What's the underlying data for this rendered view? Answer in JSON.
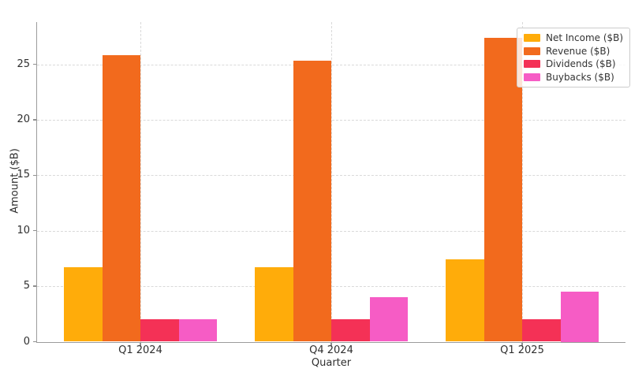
{
  "chart_data": {
    "type": "bar",
    "title": "",
    "xlabel": "Quarter",
    "ylabel": "Amount ($B)",
    "categories": [
      "Q1 2024",
      "Q4 2024",
      "Q1 2025"
    ],
    "series": [
      {
        "name": "Net Income ($B)",
        "color": "#FFAC0A",
        "values": [
          6.7,
          6.7,
          7.4
        ]
      },
      {
        "name": "Revenue ($B)",
        "color": "#F26A1D",
        "values": [
          25.8,
          25.3,
          27.4
        ]
      },
      {
        "name": "Dividends ($B)",
        "color": "#F43156",
        "values": [
          2.0,
          2.0,
          2.0
        ]
      },
      {
        "name": "Buybacks ($B)",
        "color": "#F65CC5",
        "values": [
          2.0,
          4.0,
          4.5
        ]
      }
    ],
    "yticks": [
      0,
      5,
      10,
      15,
      20,
      25
    ],
    "ylim": [
      0,
      28.8
    ],
    "grid": true,
    "grid_style": "dashed",
    "legend_position": "upper right",
    "colors": {
      "grid": "#d9d9d9",
      "spine": "#9c9c9c",
      "text": "#2f2f2f",
      "background": "#ffffff"
    }
  }
}
